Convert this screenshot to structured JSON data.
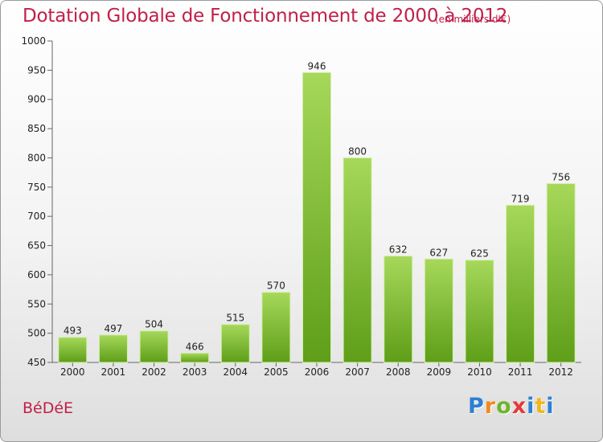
{
  "title": "Dotation Globale de Fonctionnement de 2000 à 2012",
  "subtitle": "(en milliers d'€)",
  "commune": "BéDéE",
  "logo": {
    "letters": [
      "P",
      "r",
      "o",
      "x",
      "i",
      "t",
      "i"
    ],
    "colors": [
      "#2f7fd1",
      "#f08a1c",
      "#6fb52c",
      "#e23a3a",
      "#2f7fd1",
      "#f0b81c",
      "#2f7fd1"
    ]
  },
  "colors": {
    "bar_top": "#a6d85a",
    "bar_bottom": "#5e9e18",
    "title": "#c0204a"
  },
  "chart_data": {
    "type": "bar",
    "categories": [
      "2000",
      "2001",
      "2002",
      "2003",
      "2004",
      "2005",
      "2006",
      "2007",
      "2008",
      "2009",
      "2010",
      "2011",
      "2012"
    ],
    "values": [
      493,
      497,
      504,
      466,
      515,
      570,
      946,
      800,
      632,
      627,
      625,
      719,
      756
    ],
    "title": "Dotation Globale de Fonctionnement de 2000 à 2012",
    "subtitle": "(en milliers d'€)",
    "xlabel": "",
    "ylabel": "",
    "ylim": [
      450,
      1000
    ],
    "yticks": [
      450,
      500,
      550,
      600,
      650,
      700,
      750,
      800,
      850,
      900,
      950,
      1000
    ],
    "grid": false,
    "data_labels": true
  }
}
